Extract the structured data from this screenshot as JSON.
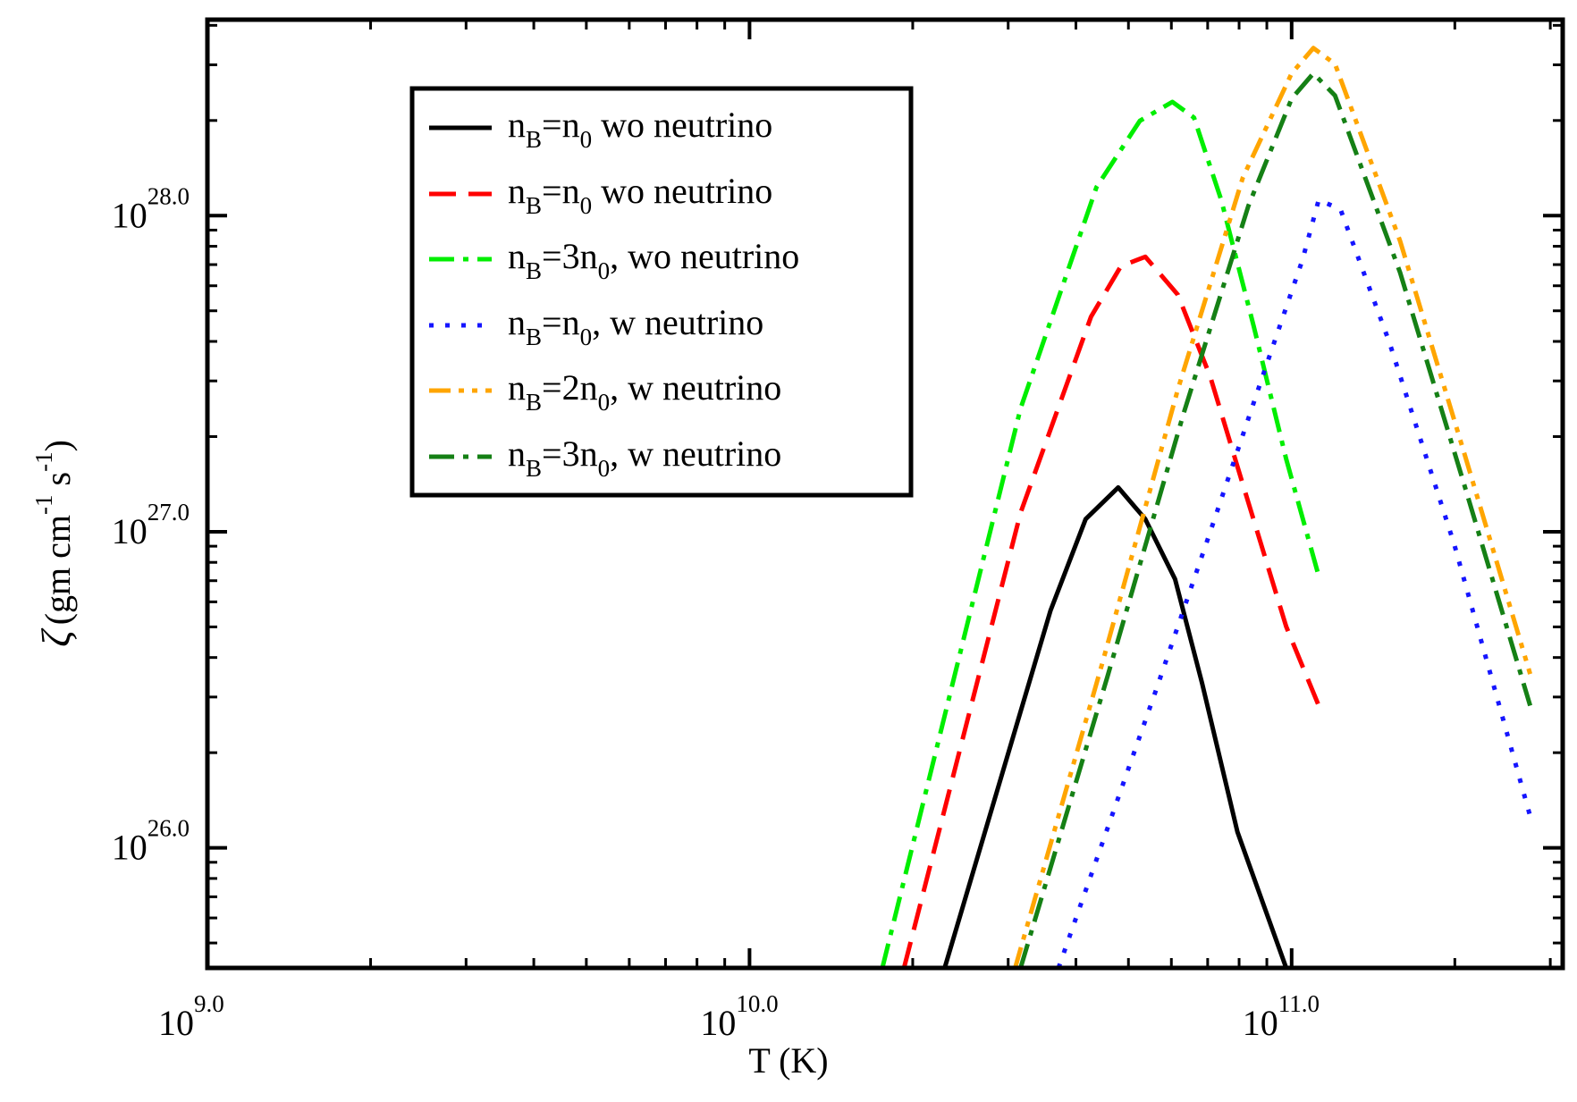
{
  "chart_data": {
    "type": "line",
    "title": "",
    "xscale": "log",
    "yscale": "log",
    "xlim_exp": [
      9.0,
      11.5
    ],
    "ylim_exp": [
      25.62,
      28.62
    ],
    "x_ticks": [
      {
        "base": "10",
        "exp": "9.0",
        "value_exp": 9.0
      },
      {
        "base": "10",
        "exp": "10.0",
        "value_exp": 10.0
      },
      {
        "base": "10",
        "exp": "11.0",
        "value_exp": 11.0
      }
    ],
    "y_ticks": [
      {
        "base": "10",
        "exp": "26.0",
        "value_exp": 26.0
      },
      {
        "base": "10",
        "exp": "27.0",
        "value_exp": 27.0
      },
      {
        "base": "10",
        "exp": "28.0",
        "value_exp": 28.0
      }
    ],
    "xlabel": "T (K)",
    "ylabel": {
      "symbol": "ζ",
      "open": "(gm cm",
      "exp1": "-1",
      "mid": " s",
      "exp2": "-1",
      "close": ")"
    },
    "legend": {
      "placement": "top-left"
    },
    "series": [
      {
        "name": "n_B=n_0 wo neutrino",
        "label": {
          "a": "n",
          "b": "B",
          "c": "=n",
          "d": "0",
          "e": " wo neutrino"
        },
        "color": "#000000",
        "dash": "solid",
        "log_x": [
          10.36,
          10.555,
          10.62,
          10.68,
          10.73,
          10.785,
          10.835,
          10.9,
          10.99
        ],
        "log_y": [
          25.62,
          26.75,
          27.04,
          27.14,
          27.04,
          26.85,
          26.52,
          26.05,
          25.62
        ]
      },
      {
        "name": "n_B=n_0 wo neutrino",
        "label": {
          "a": "n",
          "b": "B",
          "c": "=n",
          "d": "0",
          "e": " wo neutrino"
        },
        "color": "#ff0000",
        "dash": "long-dash",
        "log_x": [
          10.285,
          10.5,
          10.63,
          10.685,
          10.73,
          10.79,
          10.85,
          10.91,
          10.99,
          11.05
        ],
        "log_y": [
          25.62,
          27.06,
          27.68,
          27.84,
          27.87,
          27.75,
          27.49,
          27.15,
          26.7,
          26.45
        ]
      },
      {
        "name": "n_B=3n_0, wo neutrino",
        "label": {
          "a": "n",
          "b": "B",
          "c": "=3n",
          "d": "0",
          "e": ", wo neutrino"
        },
        "color": "#00ee00",
        "dash": "dash-dot",
        "log_x": [
          10.245,
          10.5,
          10.64,
          10.72,
          10.78,
          10.82,
          10.87,
          10.93,
          10.99,
          11.05
        ],
        "log_y": [
          25.62,
          27.39,
          28.09,
          28.3,
          28.36,
          28.31,
          28.05,
          27.65,
          27.23,
          26.86
        ]
      },
      {
        "name": "n_B=n_0, w neutrino",
        "label": {
          "a": "n",
          "b": "B",
          "c": "=n",
          "d": "0",
          "e": ", w neutrino"
        },
        "color": "#1515ff",
        "dash": "dotted",
        "log_x": [
          10.57,
          10.75,
          10.85,
          10.95,
          11.02,
          11.05,
          11.09,
          11.18,
          11.3,
          11.44
        ],
        "log_y": [
          25.62,
          26.5,
          27.0,
          27.51,
          27.86,
          28.05,
          28.02,
          27.6,
          26.96,
          26.1
        ]
      },
      {
        "name": "n_B=2n_0, w neutrino",
        "label": {
          "a": "n",
          "b": "B",
          "c": "=2n",
          "d": "0",
          "e": ", w neutrino"
        },
        "color": "#ffa500",
        "dash": "dash-dot-dot",
        "log_x": [
          10.49,
          10.65,
          10.79,
          10.91,
          11.0,
          11.04,
          11.08,
          11.2,
          11.32,
          11.44
        ],
        "log_y": [
          25.62,
          26.58,
          27.45,
          28.12,
          28.45,
          28.53,
          28.48,
          27.92,
          27.24,
          26.55
        ]
      },
      {
        "name": "n_B=3n_0, w neutrino",
        "label": {
          "a": "n",
          "b": "B",
          "c": "=3n",
          "d": "0",
          "e": ", w neutrino"
        },
        "color": "#158015",
        "dash": "dash-dot",
        "log_x": [
          10.5,
          10.66,
          10.8,
          10.92,
          11.0,
          11.04,
          11.08,
          11.2,
          11.32,
          11.44
        ],
        "log_y": [
          25.62,
          26.54,
          27.37,
          28.03,
          28.37,
          28.45,
          28.38,
          27.82,
          27.14,
          26.45
        ]
      }
    ]
  }
}
